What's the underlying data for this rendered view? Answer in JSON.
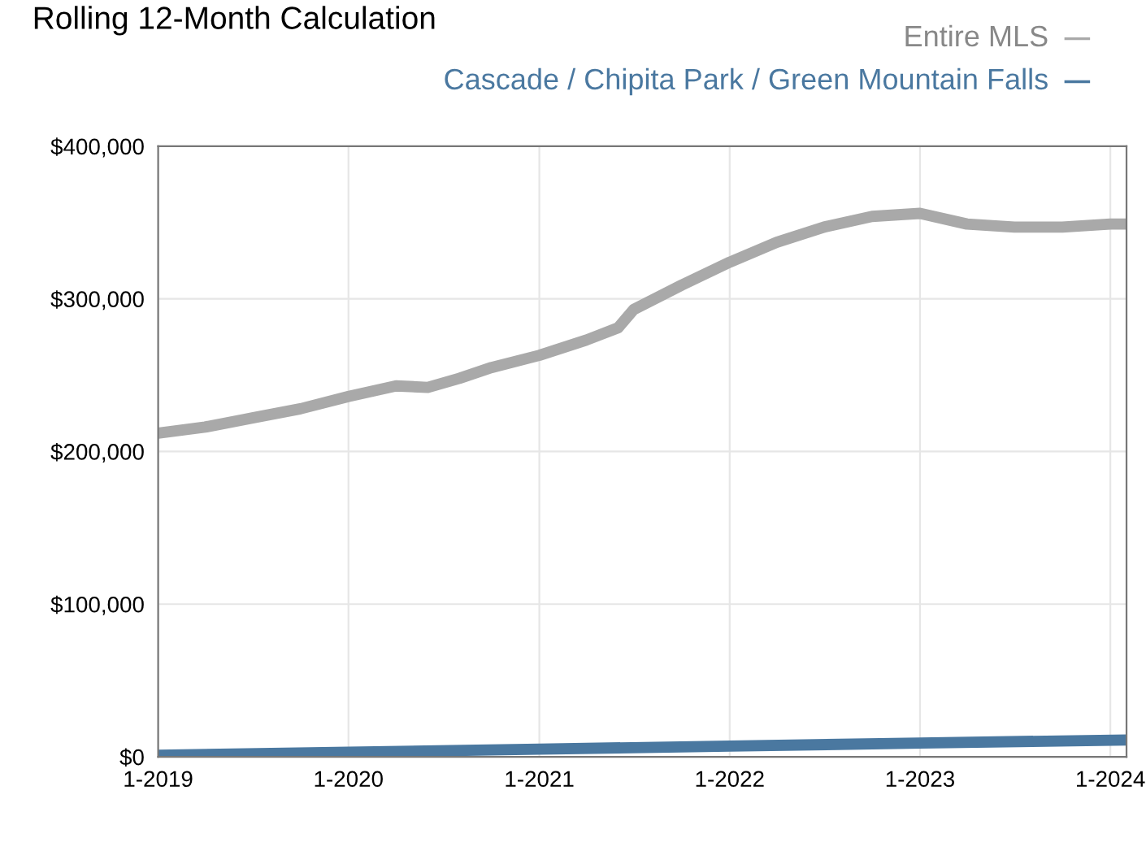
{
  "chart_data": {
    "type": "line",
    "title": "Rolling 12-Month Calculation",
    "x": [
      "2019-01",
      "2019-04",
      "2019-07",
      "2019-10",
      "2020-01",
      "2020-04",
      "2020-06",
      "2020-08",
      "2020-10",
      "2021-01",
      "2021-04",
      "2021-06",
      "2021-07",
      "2021-10",
      "2022-01",
      "2022-04",
      "2022-07",
      "2022-10",
      "2023-01",
      "2023-04",
      "2023-07",
      "2023-10",
      "2024-01",
      "2024-02"
    ],
    "series": [
      {
        "name": "Entire MLS",
        "color": "#a9a9a9",
        "values": [
          212000,
          216000,
          222000,
          228000,
          236000,
          243000,
          242000,
          248000,
          255000,
          263000,
          273000,
          281000,
          293000,
          309000,
          324000,
          337000,
          347000,
          354000,
          356000,
          349000,
          347000,
          347000,
          349000,
          349000
        ]
      },
      {
        "name": "Cascade / Chipita Park / Green Mountain Falls",
        "color": "#4a78a0",
        "x": [
          "2019-01",
          "2020-01",
          "2021-01",
          "2022-01",
          "2023-01",
          "2024-02"
        ],
        "values": [
          1000,
          3000,
          5000,
          7000,
          9000,
          11000
        ]
      }
    ],
    "xlim": [
      "2019-01",
      "2024-02"
    ],
    "xticks": [
      {
        "value": "2019-01",
        "label": "1-2019"
      },
      {
        "value": "2020-01",
        "label": "1-2020"
      },
      {
        "value": "2021-01",
        "label": "1-2021"
      },
      {
        "value": "2022-01",
        "label": "1-2022"
      },
      {
        "value": "2023-01",
        "label": "1-2023"
      },
      {
        "value": "2024-01",
        "label": "1-2024"
      }
    ],
    "ylim": [
      0,
      400000
    ],
    "yticks": [
      {
        "value": 0,
        "label": "$0"
      },
      {
        "value": 100000,
        "label": "$100,000"
      },
      {
        "value": 200000,
        "label": "$200,000"
      },
      {
        "value": 300000,
        "label": "$300,000"
      },
      {
        "value": 400000,
        "label": "$400,000"
      }
    ],
    "grid": true,
    "legend": "top right",
    "marker": "none",
    "line_style": "solid"
  }
}
